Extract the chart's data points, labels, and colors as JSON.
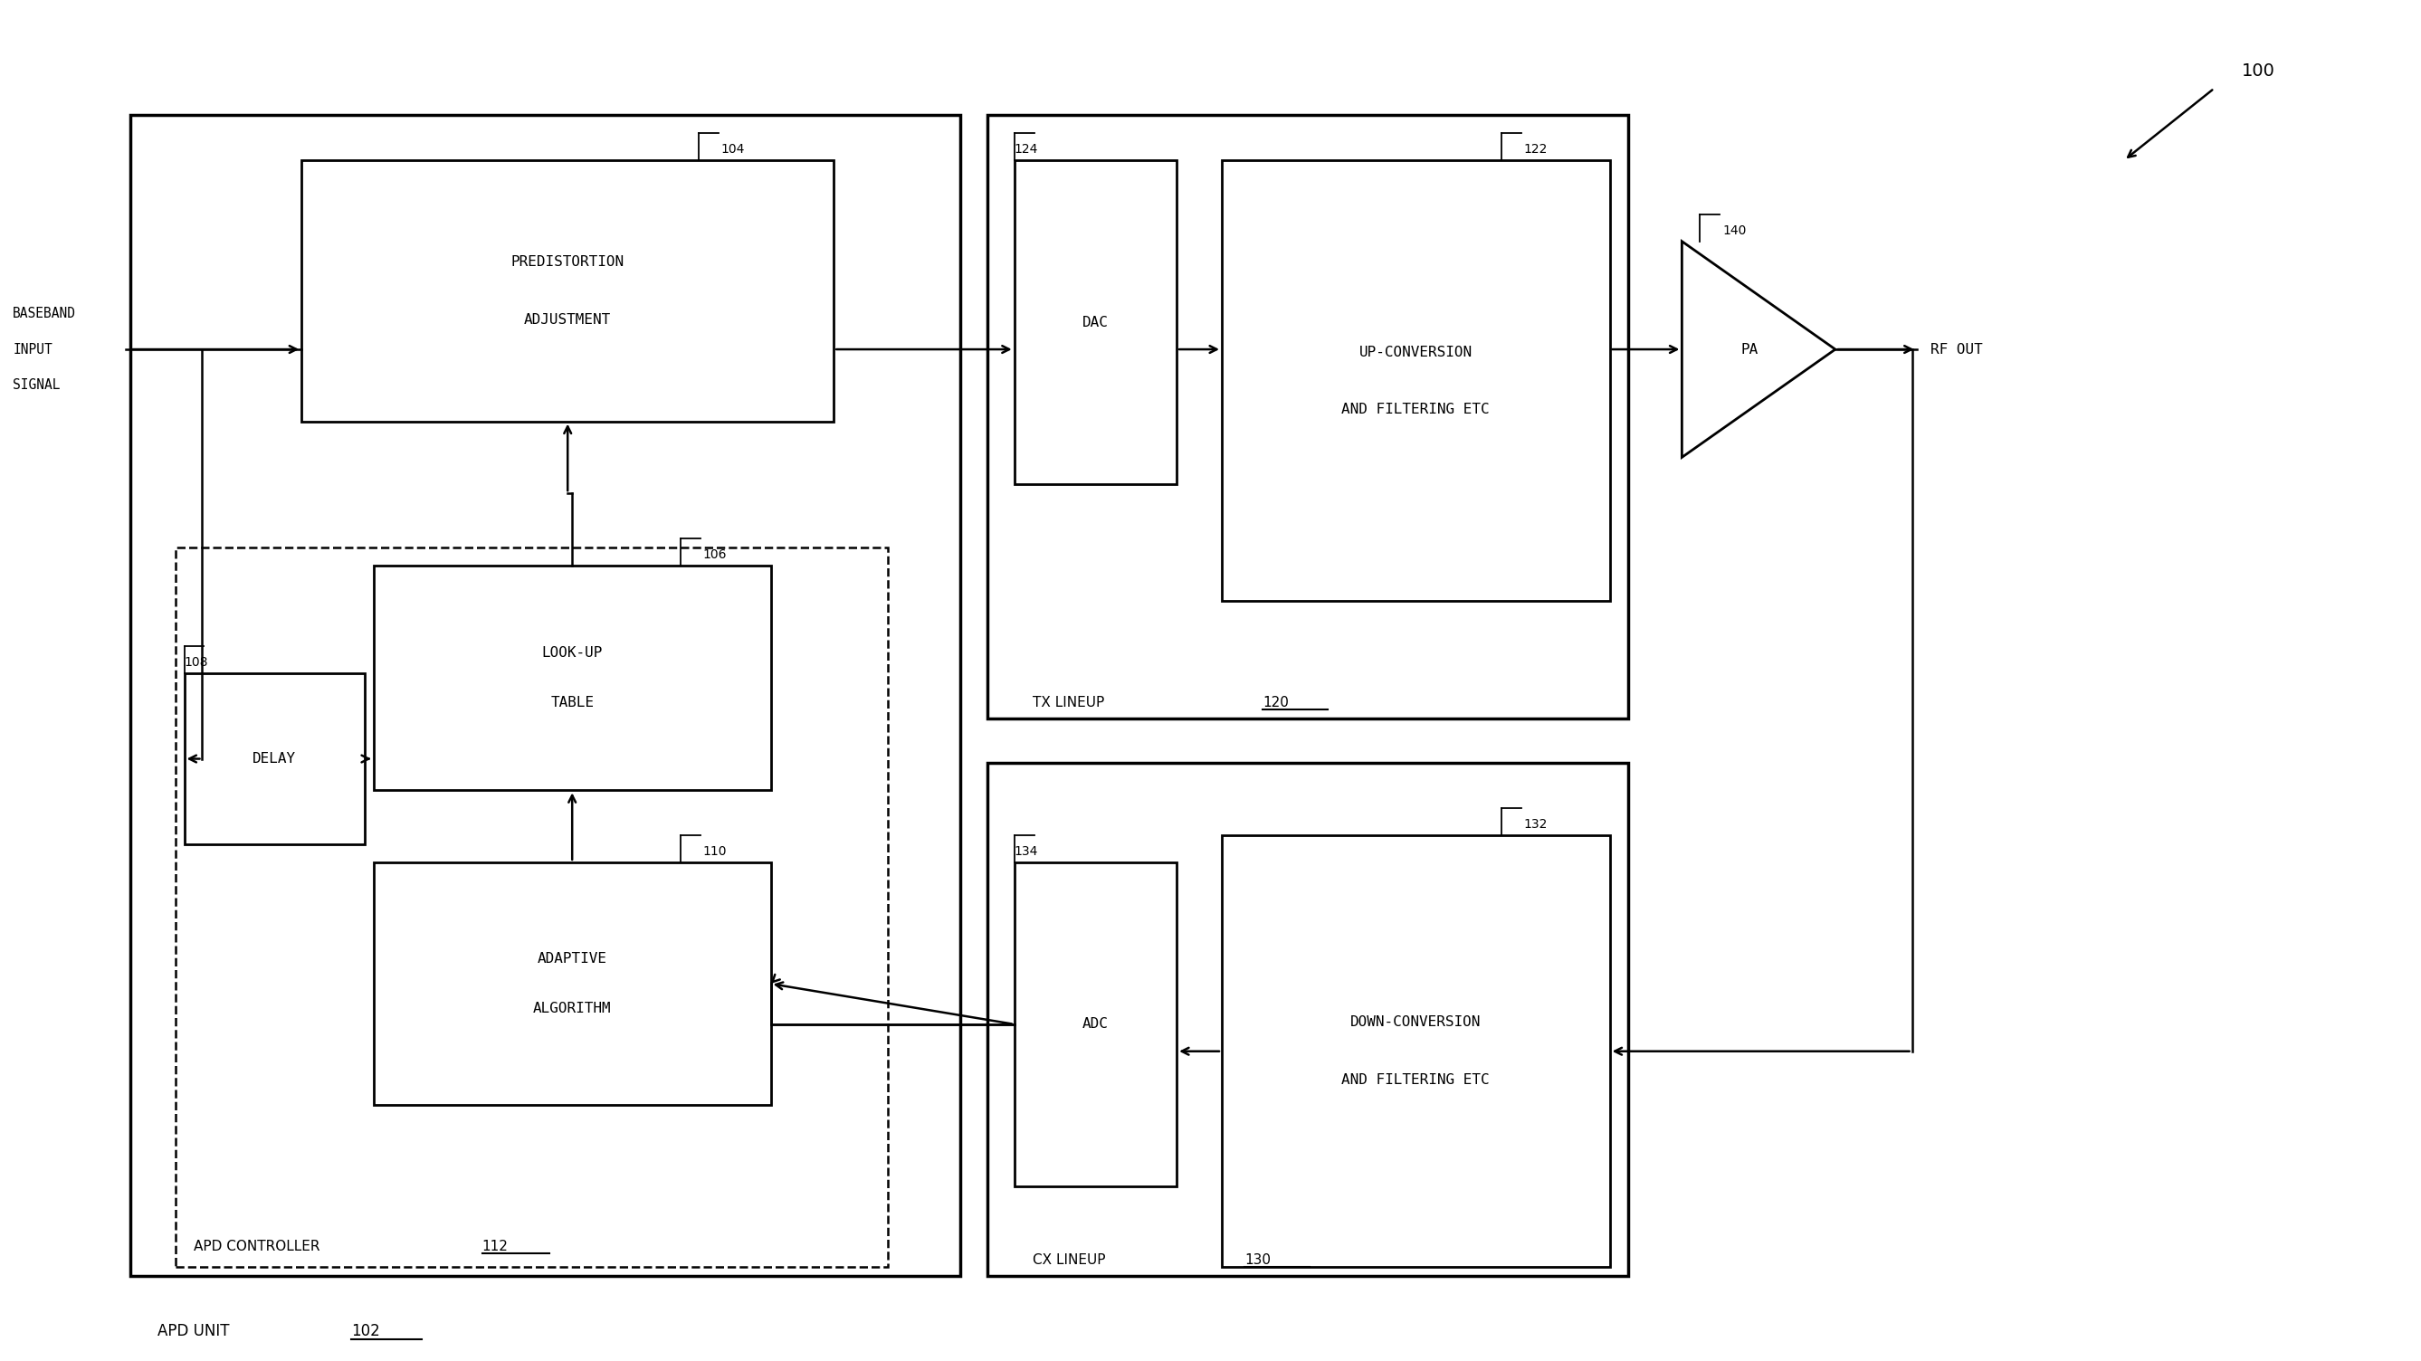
{
  "bg_color": "#ffffff",
  "line_color": "#000000",
  "fig_width": 26.75,
  "fig_height": 15.04,
  "labels": {
    "apd_unit": "APD UNIT",
    "apd_unit_num": "102",
    "apd_controller": "APD CONTROLLER",
    "apd_controller_num": "112",
    "tx_lineup": "TX LINEUP",
    "tx_lineup_num": "120",
    "cx_lineup": "CX LINEUP",
    "cx_lineup_num": "130",
    "predistortion_line1": "PREDISTORTION",
    "predistortion_line2": "ADJUSTMENT",
    "predistortion_num": "104",
    "lookup_line1": "LOOK-UP",
    "lookup_line2": "TABLE",
    "lookup_num": "106",
    "delay": "DELAY",
    "delay_num": "108",
    "adaptive_line1": "ADAPTIVE",
    "adaptive_line2": "ALGORITHM",
    "adaptive_num": "110",
    "dac": "DAC",
    "dac_num": "124",
    "up_conv_line1": "UP-CONVERSION",
    "up_conv_line2": "AND FILTERING ETC",
    "up_conv_num": "122",
    "adc": "ADC",
    "adc_num": "134",
    "down_conv_line1": "DOWN-CONVERSION",
    "down_conv_line2": "AND FILTERING ETC",
    "down_conv_num": "132",
    "pa": "PA",
    "pa_num": "140",
    "baseband_line1": "BASEBAND",
    "baseband_line2": "INPUT",
    "baseband_line3": "SIGNAL",
    "rf_out": "RF OUT",
    "ref_num": "100"
  }
}
